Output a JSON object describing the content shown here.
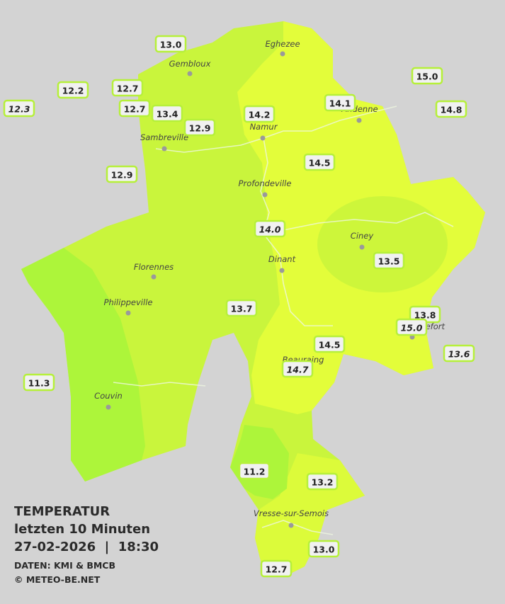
{
  "legend": {
    "title": "TEMPERATUR",
    "period": "letzten 10 Minuten",
    "datetime": "27-02-2026  |  18:30",
    "source": "DATEN: KMI & BMCB",
    "copyright": "© METEO-BE.NET"
  },
  "towns": [
    "Gembloux",
    "Eghezee",
    "Andenne",
    "Namur",
    "Sambreville",
    "Profondeville",
    "Ciney",
    "Dinant",
    "Florennes",
    "Philippeville",
    "Couvin",
    "Vresse-sur-Semois",
    "Beauraing",
    "Rochefort"
  ],
  "readings": [
    "13.0",
    "12.2",
    "12.3",
    "12.7",
    "12.7",
    "13.4",
    "12.9",
    "14.2",
    "14.1",
    "15.0",
    "14.8",
    "12.9",
    "14.5",
    "14.0",
    "13.5",
    "13.7",
    "13.8",
    "15.0",
    "14.5",
    "13.6",
    "14.7",
    "11.3",
    "11.2",
    "13.2",
    "13.0",
    "12.7"
  ]
}
